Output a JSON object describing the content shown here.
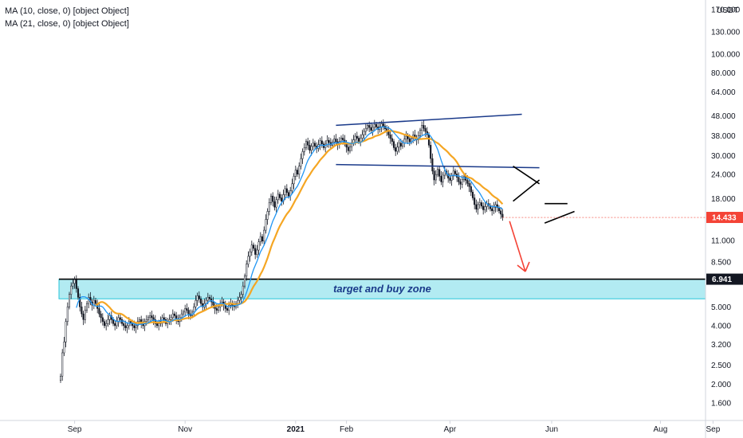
{
  "legend": {
    "ma10": "MA (10, close, 0) [object Object]",
    "ma21": "MA (21, close, 0) [object Object]"
  },
  "axis": {
    "currency": "USDT"
  },
  "colors": {
    "up": "#131722",
    "down": "#131722",
    "ma10": "#2196f3",
    "ma21": "#f5a623",
    "zone_fill": "#b2ebf2",
    "zone_border": "#26c6da",
    "trend_blue": "#1a3a8a",
    "arrow": "#f44336",
    "price_badge": "#f44336",
    "level_badge": "#131722"
  },
  "chart_data": {
    "type": "candlestick",
    "y_scale": "log",
    "y_ticks": [
      "1.600",
      "2.000",
      "2.500",
      "3.200",
      "4.000",
      "5.000",
      "6.941",
      "8.500",
      "11.000",
      "14.433",
      "18.000",
      "24.000",
      "30.000",
      "38.000",
      "48.000",
      "64.000",
      "80.000",
      "100.000",
      "130.000",
      "170.000"
    ],
    "y_tick_values": [
      1.6,
      2.0,
      2.5,
      3.2,
      4.0,
      5.0,
      6.941,
      8.5,
      11.0,
      14.433,
      18.0,
      24.0,
      30.0,
      38.0,
      48.0,
      64.0,
      80.0,
      100.0,
      130.0,
      170.0
    ],
    "x_ticks": [
      "Sep",
      "Nov",
      "2021",
      "Feb",
      "Apr",
      "Jun",
      "Aug",
      "Sep"
    ],
    "x_tick_index": [
      8,
      71,
      134,
      163,
      222,
      280,
      342,
      372
    ],
    "y_range": [
      1.3,
      190.0
    ],
    "last_price": "14.433",
    "level_price": "6.941",
    "zone": {
      "top": 6.941,
      "bottom": 5.5,
      "label": "target and buy zone"
    },
    "closes": [
      2.2,
      2.9,
      3.3,
      4.2,
      5.0,
      5.8,
      6.4,
      6.6,
      6.9,
      6.2,
      5.6,
      5.0,
      4.6,
      4.3,
      4.8,
      5.2,
      5.6,
      5.3,
      5.1,
      5.4,
      5.2,
      4.9,
      4.6,
      4.4,
      4.2,
      4.0,
      4.1,
      4.3,
      4.5,
      4.3,
      4.1,
      4.0,
      4.2,
      4.4,
      4.3,
      4.1,
      4.0,
      3.9,
      4.0,
      4.2,
      4.1,
      4.0,
      3.9,
      4.0,
      4.2,
      4.3,
      4.1,
      4.0,
      4.2,
      4.3,
      4.4,
      4.5,
      4.4,
      4.3,
      4.1,
      4.0,
      4.1,
      4.2,
      4.4,
      4.3,
      4.1,
      4.2,
      4.3,
      4.4,
      4.6,
      4.5,
      4.3,
      4.2,
      4.4,
      4.6,
      4.7,
      4.9,
      4.8,
      4.6,
      4.5,
      4.7,
      5.0,
      5.4,
      5.7,
      5.5,
      5.2,
      5.0,
      5.2,
      5.4,
      5.6,
      5.5,
      5.3,
      5.1,
      4.9,
      4.8,
      5.0,
      5.2,
      5.3,
      5.1,
      4.9,
      4.8,
      5.1,
      5.2,
      5.1,
      5.0,
      5.2,
      5.4,
      5.6,
      5.8,
      6.4,
      7.2,
      8.3,
      9.1,
      9.6,
      10.4,
      10.0,
      9.3,
      9.8,
      10.8,
      11.5,
      10.9,
      12.4,
      14.1,
      15.5,
      17.2,
      18.6,
      17.4,
      16.3,
      17.8,
      19.0,
      18.2,
      17.5,
      18.9,
      20.3,
      19.4,
      18.6,
      19.8,
      21.5,
      23.5,
      25.3,
      24.1,
      26.5,
      29.0,
      31.5,
      33.0,
      35.5,
      34.0,
      32.0,
      33.5,
      34.8,
      33.6,
      32.7,
      34.2,
      35.8,
      34.5,
      33.0,
      34.4,
      36.0,
      35.1,
      34.0,
      35.3,
      36.6,
      35.4,
      34.2,
      35.5,
      37.0,
      36.1,
      34.8,
      33.2,
      31.8,
      33.4,
      35.0,
      36.2,
      37.8,
      36.9,
      35.5,
      37.0,
      38.5,
      40.0,
      41.5,
      43.0,
      41.9,
      40.5,
      42.0,
      43.5,
      42.2,
      41.0,
      42.3,
      43.8,
      42.6,
      41.3,
      40.0,
      38.4,
      36.8,
      35.5,
      33.0,
      31.6,
      33.2,
      34.8,
      33.6,
      35.0,
      36.5,
      37.8,
      36.7,
      35.4,
      36.8,
      38.4,
      37.0,
      36.2,
      38.0,
      40.5,
      43.0,
      41.5,
      40.0,
      38.5,
      34.0,
      29.0,
      25.0,
      22.5,
      24.0,
      25.5,
      23.5,
      22.0,
      23.8,
      25.0,
      24.2,
      23.0,
      22.4,
      23.6,
      25.0,
      24.2,
      23.2,
      22.0,
      21.4,
      22.6,
      23.4,
      22.4,
      21.6,
      20.8,
      19.5,
      18.2,
      16.8,
      15.9,
      16.8,
      17.2,
      16.5,
      15.8,
      16.4,
      17.0,
      16.6,
      16.0,
      15.6,
      16.3,
      16.8,
      16.2,
      15.6,
      15.0,
      14.433
    ],
    "annotations": {
      "channel_top": [
        [
          157,
          43.0
        ],
        [
          263,
          49.0
        ]
      ],
      "channel_bottom": [
        [
          157,
          27.0
        ],
        [
          273,
          26.0
        ]
      ],
      "wedge_upper": [
        [
          258,
          26.5
        ],
        [
          273,
          21.5
        ]
      ],
      "wedge_lower": [
        [
          258,
          17.5
        ],
        [
          273,
          22.5
        ]
      ],
      "triangle_upper": [
        [
          276,
          17.0
        ],
        [
          289,
          17.0
        ]
      ],
      "triangle_lower": [
        [
          276,
          13.5
        ],
        [
          293,
          15.5
        ]
      ]
    }
  }
}
